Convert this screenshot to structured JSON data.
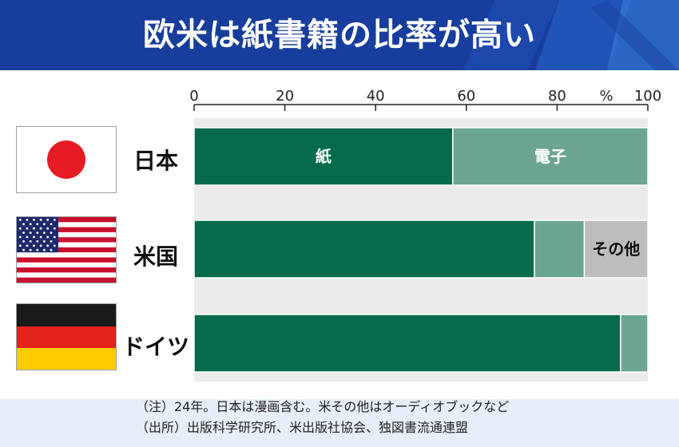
{
  "title": "欧米は紙書籍の比率が高い",
  "colors": {
    "header_bg": "#173e9c",
    "paper": "#066b4c",
    "digital": "#6da593",
    "other": "#bdbdbd"
  },
  "chart_data": {
    "type": "bar",
    "orientation": "horizontal",
    "stacked": true,
    "xlim": [
      0,
      100
    ],
    "xticks": [
      0,
      20,
      40,
      60,
      80,
      100
    ],
    "unit_label": "%",
    "categories": [
      "日本",
      "米国",
      "ドイツ"
    ],
    "series": [
      {
        "name": "紙",
        "values": [
          57,
          75,
          94
        ],
        "color": "#066b4c"
      },
      {
        "name": "電子",
        "values": [
          43,
          11,
          6
        ],
        "color": "#6da593"
      },
      {
        "name": "その他",
        "values": [
          0,
          14,
          0
        ],
        "color": "#bdbdbd"
      }
    ]
  },
  "flags": [
    {
      "country": "日本",
      "icon": "japan-flag-icon"
    },
    {
      "country": "米国",
      "icon": "usa-flag-icon"
    },
    {
      "country": "ドイツ",
      "icon": "germany-flag-icon"
    }
  ],
  "notes": [
    "（注）24年。日本は漫画含む。米その他はオーディオブックなど",
    "（出所）出版科学研究所、米出版社協会、独図書流通連盟"
  ]
}
